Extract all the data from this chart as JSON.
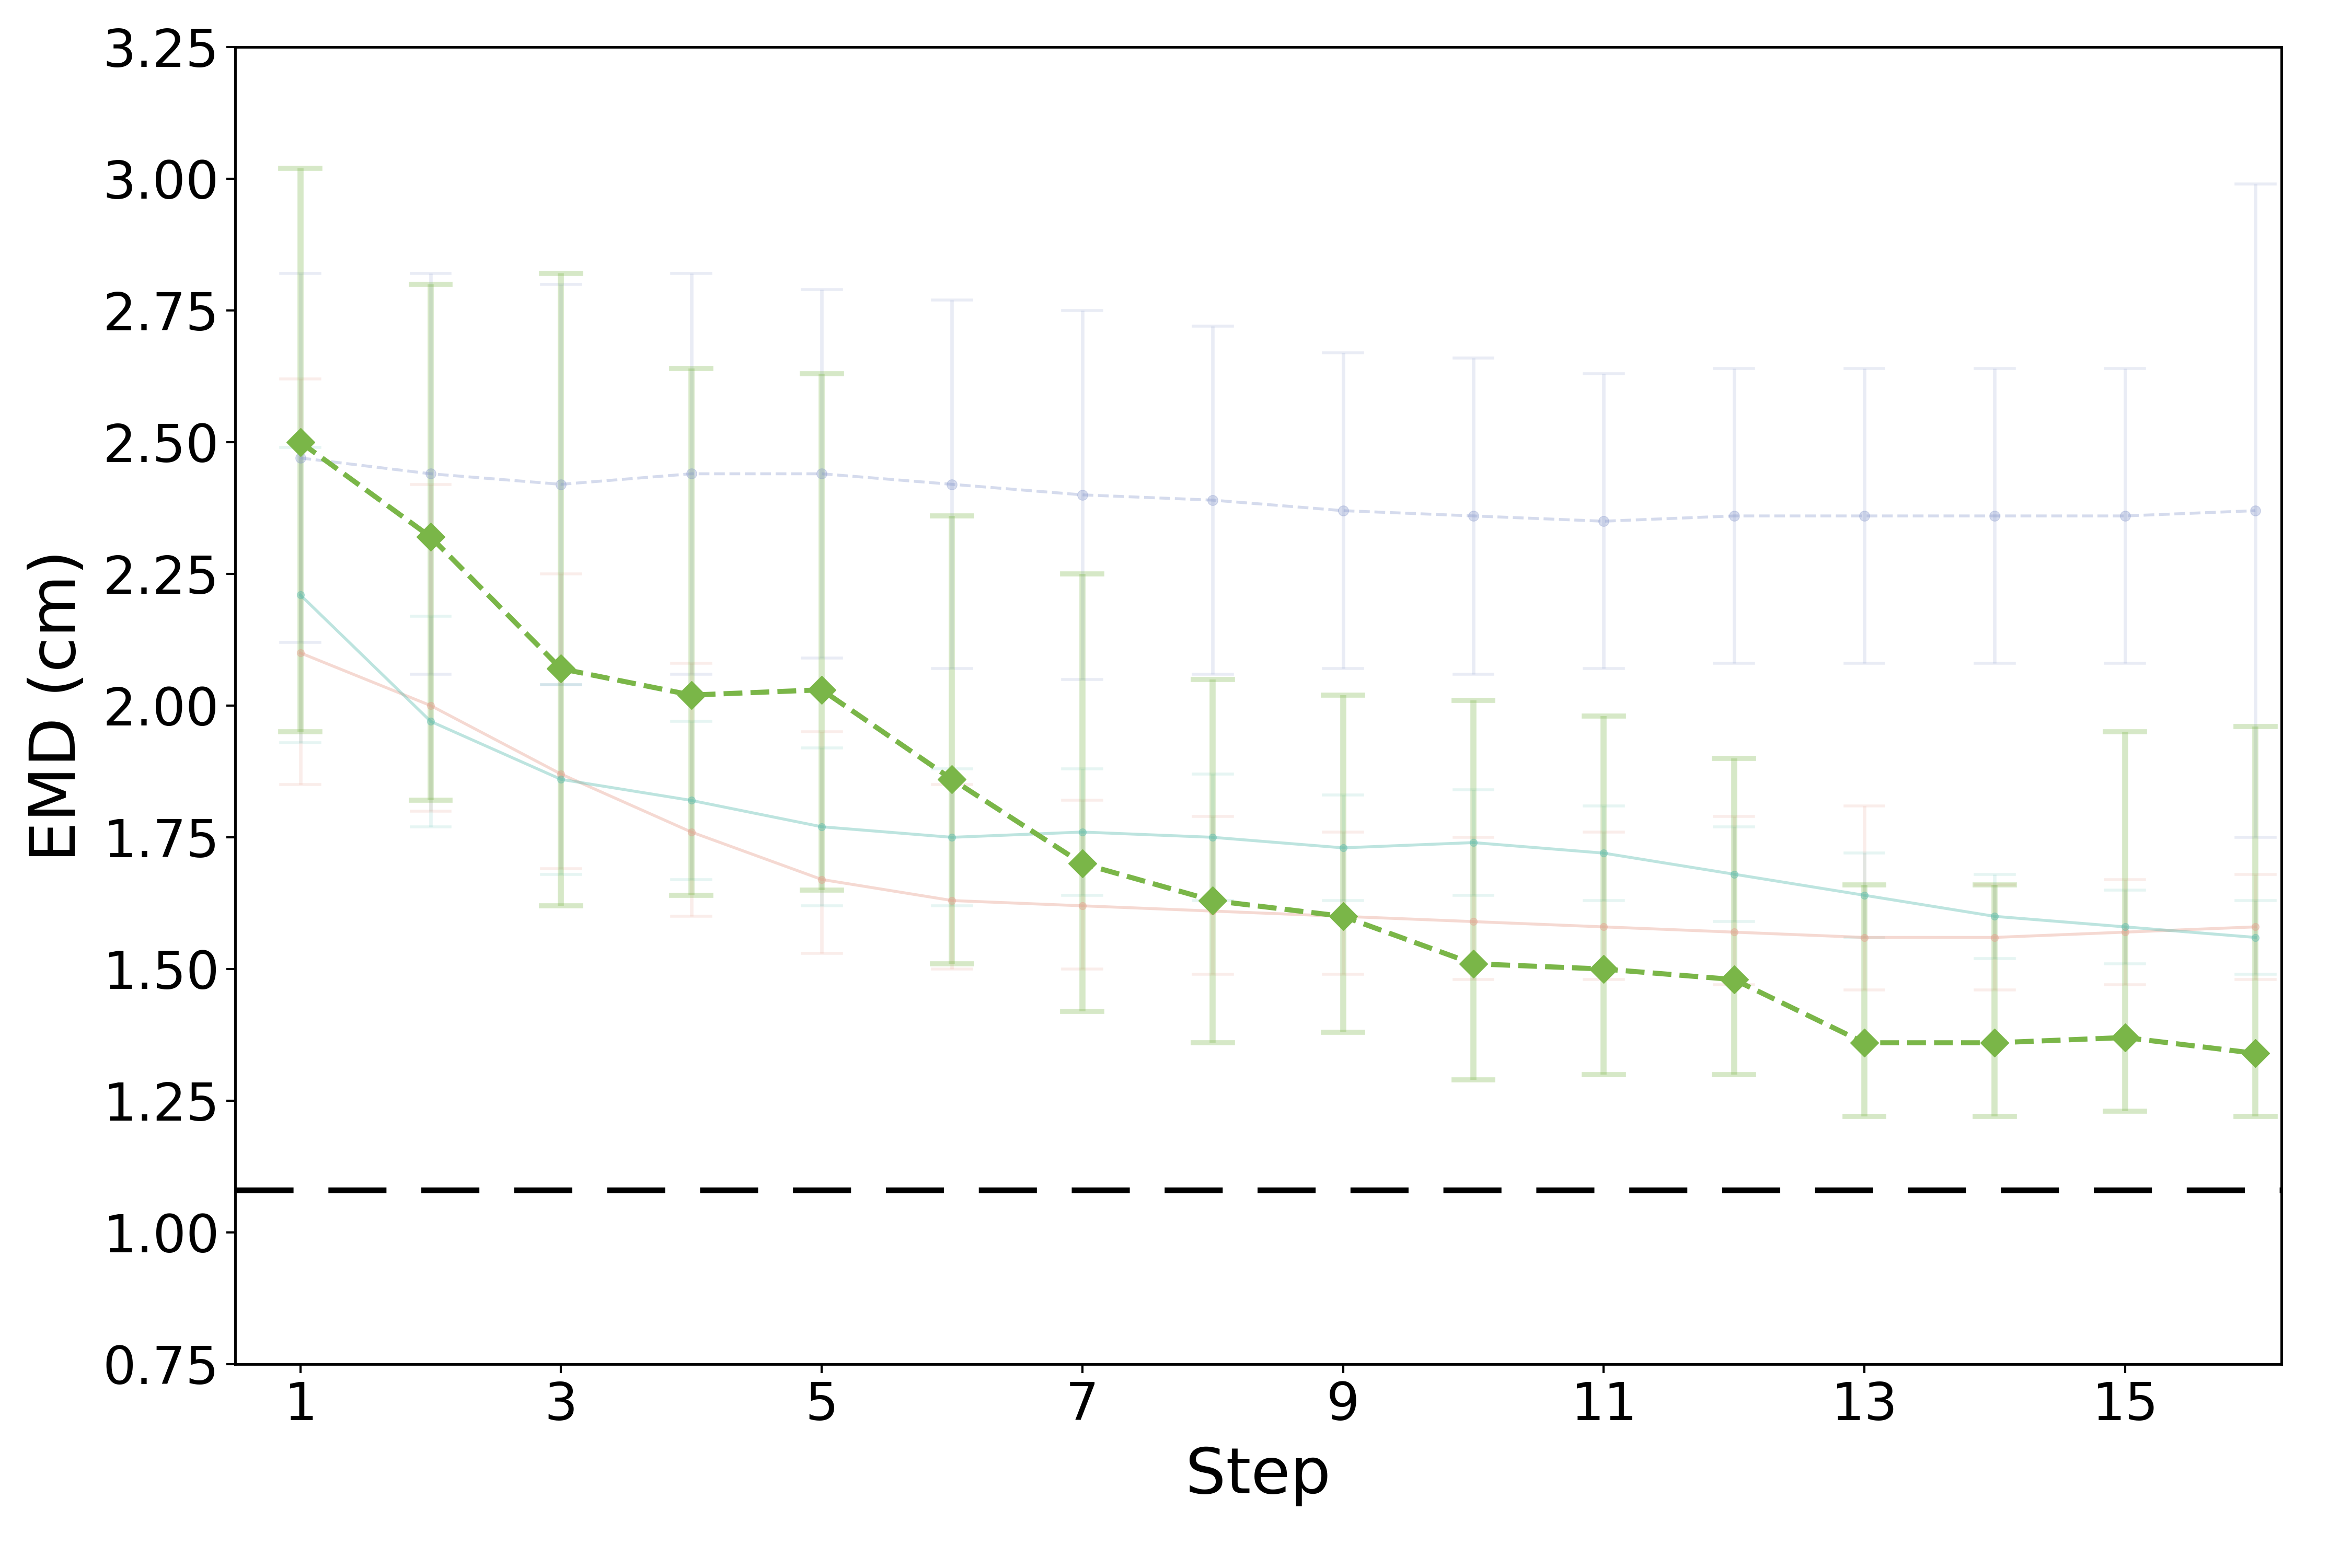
{
  "xlabel": "Step",
  "ylabel": "EMD (cm)",
  "xlim": [
    0.5,
    16.2
  ],
  "ylim": [
    0.75,
    3.25
  ],
  "yticks": [
    0.75,
    1.0,
    1.25,
    1.5,
    1.75,
    2.0,
    2.25,
    2.5,
    2.75,
    3.0,
    3.25
  ],
  "xticks": [
    1,
    3,
    5,
    7,
    9,
    11,
    13,
    15
  ],
  "dashed_line_y": 1.08,
  "green_line": {
    "x": [
      1,
      2,
      3,
      4,
      5,
      6,
      7,
      8,
      9,
      10,
      11,
      12,
      13,
      14,
      15,
      16
    ],
    "y": [
      2.5,
      2.32,
      2.07,
      2.02,
      2.03,
      1.86,
      1.7,
      1.63,
      1.6,
      1.51,
      1.5,
      1.48,
      1.36,
      1.36,
      1.37,
      1.34
    ],
    "yerr_low": [
      0.55,
      0.5,
      0.45,
      0.38,
      0.38,
      0.35,
      0.28,
      0.27,
      0.22,
      0.22,
      0.2,
      0.18,
      0.14,
      0.14,
      0.14,
      0.12
    ],
    "yerr_high": [
      0.52,
      0.48,
      0.75,
      0.62,
      0.6,
      0.5,
      0.55,
      0.42,
      0.42,
      0.5,
      0.48,
      0.42,
      0.3,
      0.3,
      0.58,
      0.62
    ],
    "color": "#7ab648",
    "alpha": 1.0,
    "err_alpha": 0.3,
    "linewidth": 7,
    "marker": "D",
    "markersize": 28,
    "linestyle": "--"
  },
  "blue_line": {
    "x": [
      1,
      2,
      3,
      4,
      5,
      6,
      7,
      8,
      9,
      10,
      11,
      12,
      13,
      14,
      15,
      16
    ],
    "y": [
      2.47,
      2.44,
      2.42,
      2.44,
      2.44,
      2.42,
      2.4,
      2.39,
      2.37,
      2.36,
      2.35,
      2.36,
      2.36,
      2.36,
      2.36,
      2.37
    ],
    "yerr_low": [
      0.35,
      0.38,
      0.38,
      0.38,
      0.35,
      0.35,
      0.35,
      0.33,
      0.3,
      0.3,
      0.28,
      0.28,
      0.28,
      0.28,
      0.28,
      0.62
    ],
    "yerr_high": [
      0.35,
      0.38,
      0.38,
      0.38,
      0.35,
      0.35,
      0.35,
      0.33,
      0.3,
      0.3,
      0.28,
      0.28,
      0.28,
      0.28,
      0.28,
      0.62
    ],
    "color": "#8899cc",
    "alpha": 0.35,
    "err_alpha": 0.18,
    "linewidth": 4,
    "marker": "o",
    "markersize": 14,
    "linestyle": "--"
  },
  "teal_line": {
    "x": [
      1,
      2,
      3,
      4,
      5,
      6,
      7,
      8,
      9,
      10,
      11,
      12,
      13,
      14,
      15,
      16
    ],
    "y": [
      2.21,
      1.97,
      1.86,
      1.82,
      1.77,
      1.75,
      1.76,
      1.75,
      1.73,
      1.74,
      1.72,
      1.68,
      1.64,
      1.6,
      1.58,
      1.56
    ],
    "yerr_low": [
      0.28,
      0.2,
      0.18,
      0.15,
      0.15,
      0.13,
      0.12,
      0.12,
      0.1,
      0.1,
      0.09,
      0.09,
      0.08,
      0.08,
      0.07,
      0.07
    ],
    "yerr_high": [
      0.28,
      0.2,
      0.18,
      0.15,
      0.15,
      0.13,
      0.12,
      0.12,
      0.1,
      0.1,
      0.09,
      0.09,
      0.08,
      0.08,
      0.07,
      0.07
    ],
    "color": "#5bbcb0",
    "alpha": 0.4,
    "err_alpha": 0.15,
    "linewidth": 4,
    "marker": "o",
    "markersize": 10,
    "linestyle": "-"
  },
  "pink_line": {
    "x": [
      1,
      2,
      3,
      4,
      5,
      6,
      7,
      8,
      9,
      10,
      11,
      12,
      13,
      14,
      15,
      16
    ],
    "y": [
      2.1,
      2.0,
      1.87,
      1.76,
      1.67,
      1.63,
      1.62,
      1.61,
      1.6,
      1.59,
      1.58,
      1.57,
      1.56,
      1.56,
      1.57,
      1.58
    ],
    "yerr_low": [
      0.25,
      0.2,
      0.18,
      0.16,
      0.14,
      0.13,
      0.12,
      0.12,
      0.11,
      0.11,
      0.1,
      0.1,
      0.1,
      0.1,
      0.1,
      0.1
    ],
    "yerr_high": [
      0.52,
      0.42,
      0.38,
      0.32,
      0.28,
      0.22,
      0.2,
      0.18,
      0.16,
      0.16,
      0.18,
      0.22,
      0.25,
      0.1,
      0.1,
      0.1
    ],
    "color": "#e8a090",
    "alpha": 0.4,
    "err_alpha": 0.18,
    "linewidth": 4,
    "marker": "o",
    "markersize": 10,
    "linestyle": "-"
  },
  "background_color": "#ffffff",
  "spine_linewidth": 3.5,
  "tick_fontsize": 72,
  "label_fontsize": 88,
  "dashed_linewidth": 8
}
